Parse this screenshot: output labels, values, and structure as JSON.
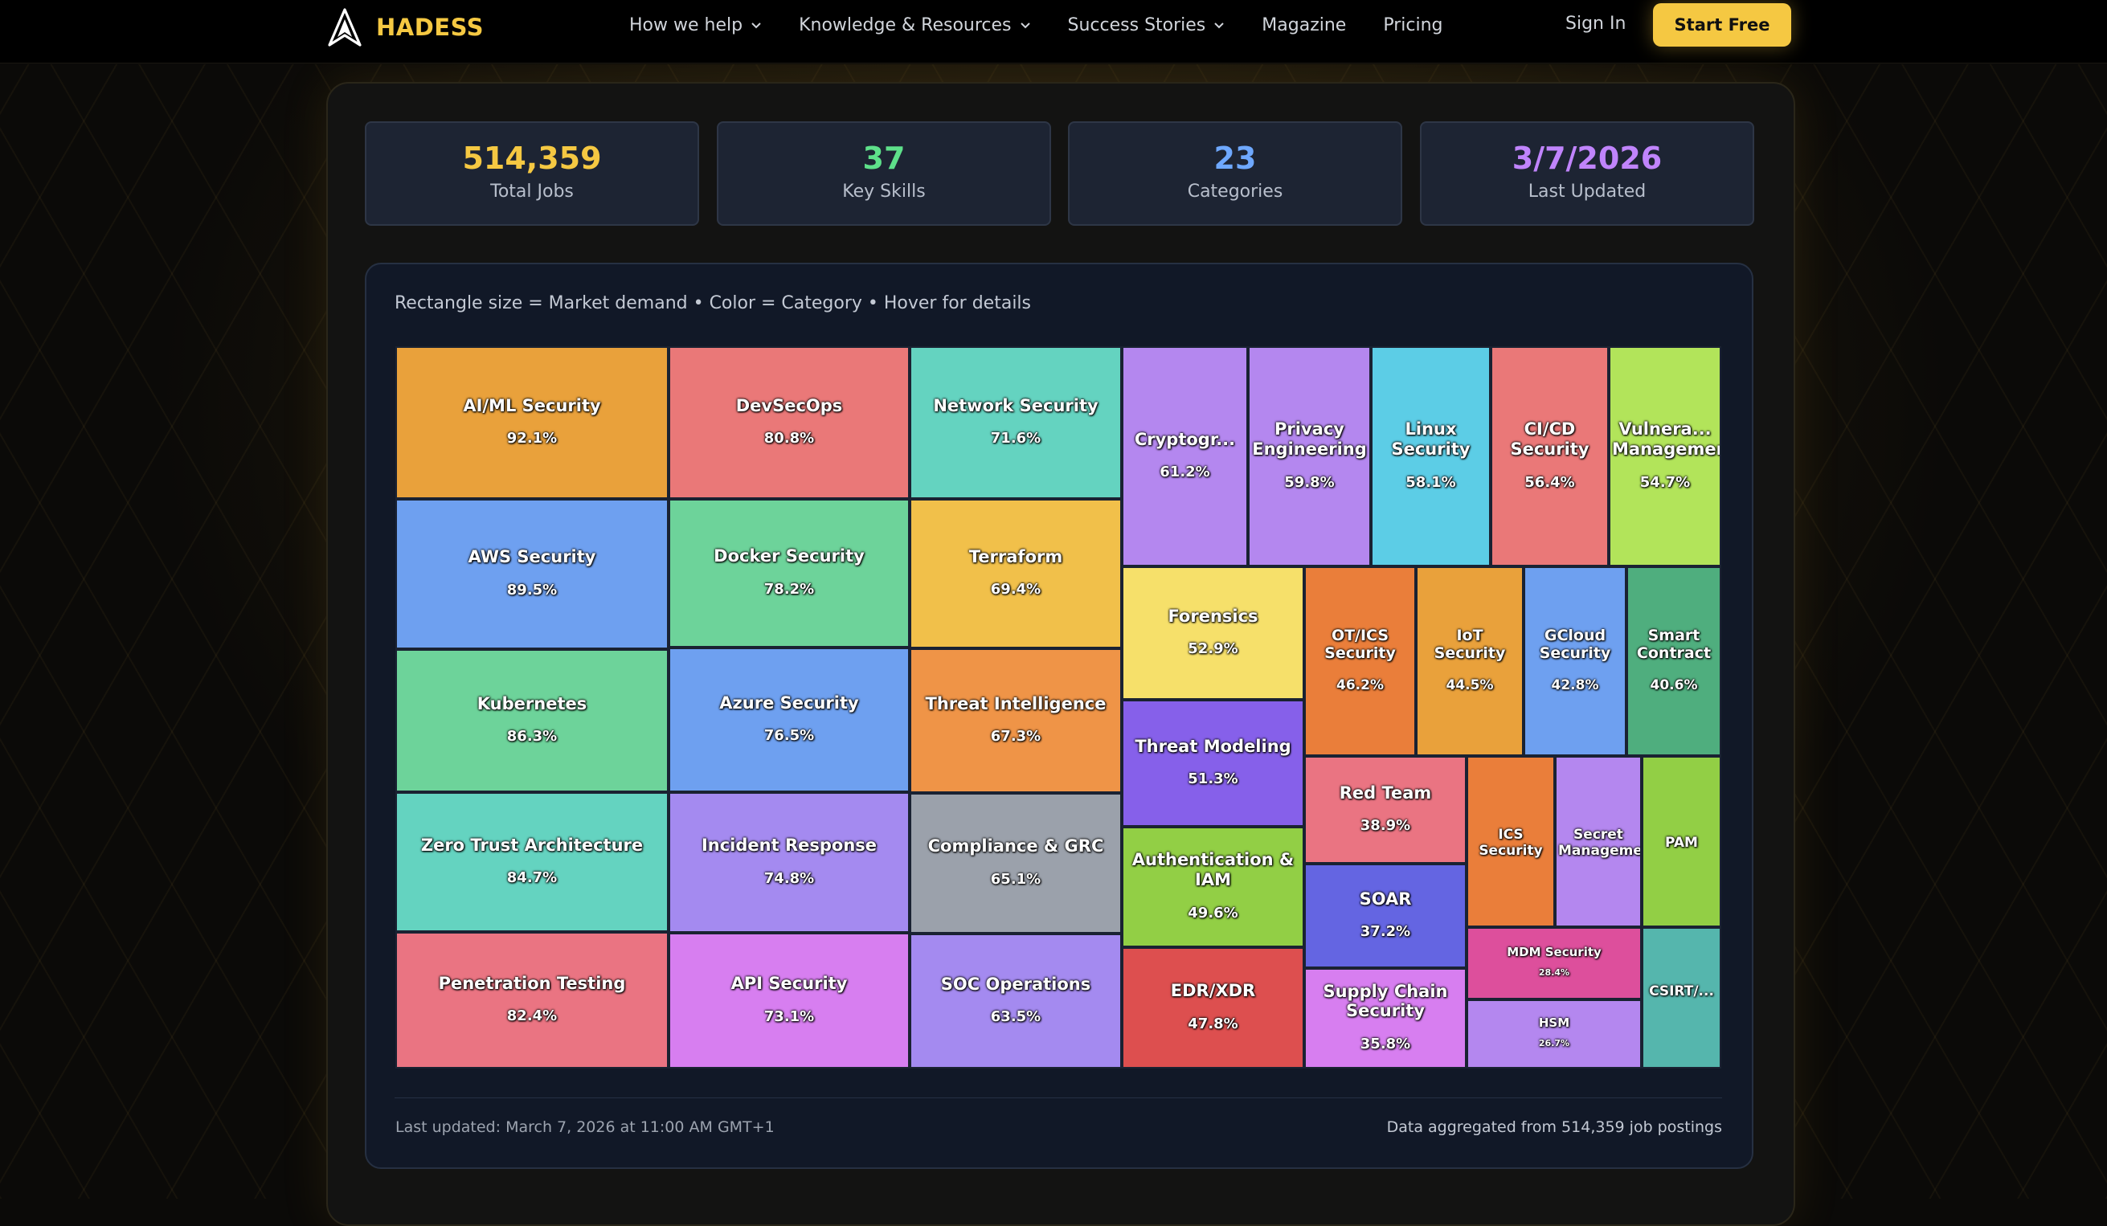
{
  "nav": {
    "brand": "HADESS",
    "menu": [
      {
        "label": "How we help",
        "dropdown": true
      },
      {
        "label": "Knowledge & Resources",
        "dropdown": true
      },
      {
        "label": "Success Stories",
        "dropdown": true
      },
      {
        "label": "Magazine",
        "dropdown": false
      },
      {
        "label": "Pricing",
        "dropdown": false
      }
    ],
    "signin": "Sign In",
    "cta": "Start Free"
  },
  "stats": [
    {
      "value": "514,359",
      "label": "Total Jobs",
      "color": "#f5c842"
    },
    {
      "value": "37",
      "label": "Key Skills",
      "color": "#5ee08a"
    },
    {
      "value": "23",
      "label": "Categories",
      "color": "#6ea8ff"
    },
    {
      "value": "3/7/2026",
      "label": "Last Updated",
      "color": "#c084fc"
    }
  ],
  "chart_note": "Rectangle size = Market demand • Color = Category • Hover for details",
  "footer": {
    "left": "Last updated: March 7, 2026 at 11:00 AM GMT+1",
    "right": "Data aggregated from 514,359 job postings"
  },
  "chart_data": {
    "type": "treemap",
    "value_unit": "%",
    "items": [
      {
        "name": "AI/ML Security",
        "value": 92.1,
        "color": "#e9a13b"
      },
      {
        "name": "AWS Security",
        "value": 89.5,
        "color": "#6ea0f0"
      },
      {
        "name": "Kubernetes",
        "value": 86.3,
        "color": "#6dd39a"
      },
      {
        "name": "Zero Trust Architecture",
        "value": 84.7,
        "color": "#64d3c0"
      },
      {
        "name": "Penetration Testing",
        "value": 82.4,
        "color": "#ea7482"
      },
      {
        "name": "DevSecOps",
        "value": 80.8,
        "color": "#ea7878"
      },
      {
        "name": "Docker Security",
        "value": 78.2,
        "color": "#6dd39a"
      },
      {
        "name": "Azure Security",
        "value": 76.5,
        "color": "#6ea0f0"
      },
      {
        "name": "Incident Response",
        "value": 74.8,
        "color": "#a48af0"
      },
      {
        "name": "API Security",
        "value": 73.1,
        "color": "#d77ef0"
      },
      {
        "name": "Network Security",
        "value": 71.6,
        "color": "#64d3c0"
      },
      {
        "name": "Terraform",
        "value": 69.4,
        "color": "#f1c04a"
      },
      {
        "name": "Threat Intelligence",
        "value": 67.3,
        "color": "#ef9447"
      },
      {
        "name": "Compliance & GRC",
        "value": 65.1,
        "color": "#9ba1ab"
      },
      {
        "name": "SOC Operations",
        "value": 63.5,
        "color": "#a48af0"
      },
      {
        "name": "Cryptogr...",
        "value": 61.2,
        "color": "#b487ef"
      },
      {
        "name": "Privacy Engineering",
        "value": 59.8,
        "color": "#b487ef"
      },
      {
        "name": "Linux Security",
        "value": 58.1,
        "color": "#5ccde6"
      },
      {
        "name": "CI/CD Security",
        "value": 56.4,
        "color": "#ea7878"
      },
      {
        "name": "Vulnera... Management",
        "value": 54.7,
        "color": "#b2e45a"
      },
      {
        "name": "Forensics",
        "value": 52.9,
        "color": "#f6e06a"
      },
      {
        "name": "Threat Modeling",
        "value": 51.3,
        "color": "#8660ea"
      },
      {
        "name": "Authentication & IAM",
        "value": 49.6,
        "color": "#92cf45"
      },
      {
        "name": "EDR/XDR",
        "value": 47.8,
        "color": "#dd4f4f"
      },
      {
        "name": "OT/ICS Security",
        "value": 46.2,
        "color": "#ea7e3a"
      },
      {
        "name": "IoT Security",
        "value": 44.5,
        "color": "#e9a13b"
      },
      {
        "name": "GCloud Security",
        "value": 42.8,
        "color": "#6ea0f0"
      },
      {
        "name": "Smart Contract",
        "value": 40.6,
        "color": "#4fae7e"
      },
      {
        "name": "Red Team",
        "value": 38.9,
        "color": "#ea7482"
      },
      {
        "name": "SOAR",
        "value": 37.2,
        "color": "#6465e2"
      },
      {
        "name": "Supply Chain Security",
        "value": 35.8,
        "color": "#d77ef0"
      },
      {
        "name": "ICS Security",
        "value": null,
        "color": "#ea7e3a"
      },
      {
        "name": "Secret Management",
        "value": null,
        "color": "#b487ef"
      },
      {
        "name": "PAM",
        "value": null,
        "color": "#92cf45"
      },
      {
        "name": "MDM Security",
        "value": 28.4,
        "color": "#dd4f9c"
      },
      {
        "name": "HSM",
        "value": 26.7,
        "color": "#b487ef"
      },
      {
        "name": "CSIRT/...",
        "value": null,
        "color": "#55b6ad"
      }
    ]
  }
}
